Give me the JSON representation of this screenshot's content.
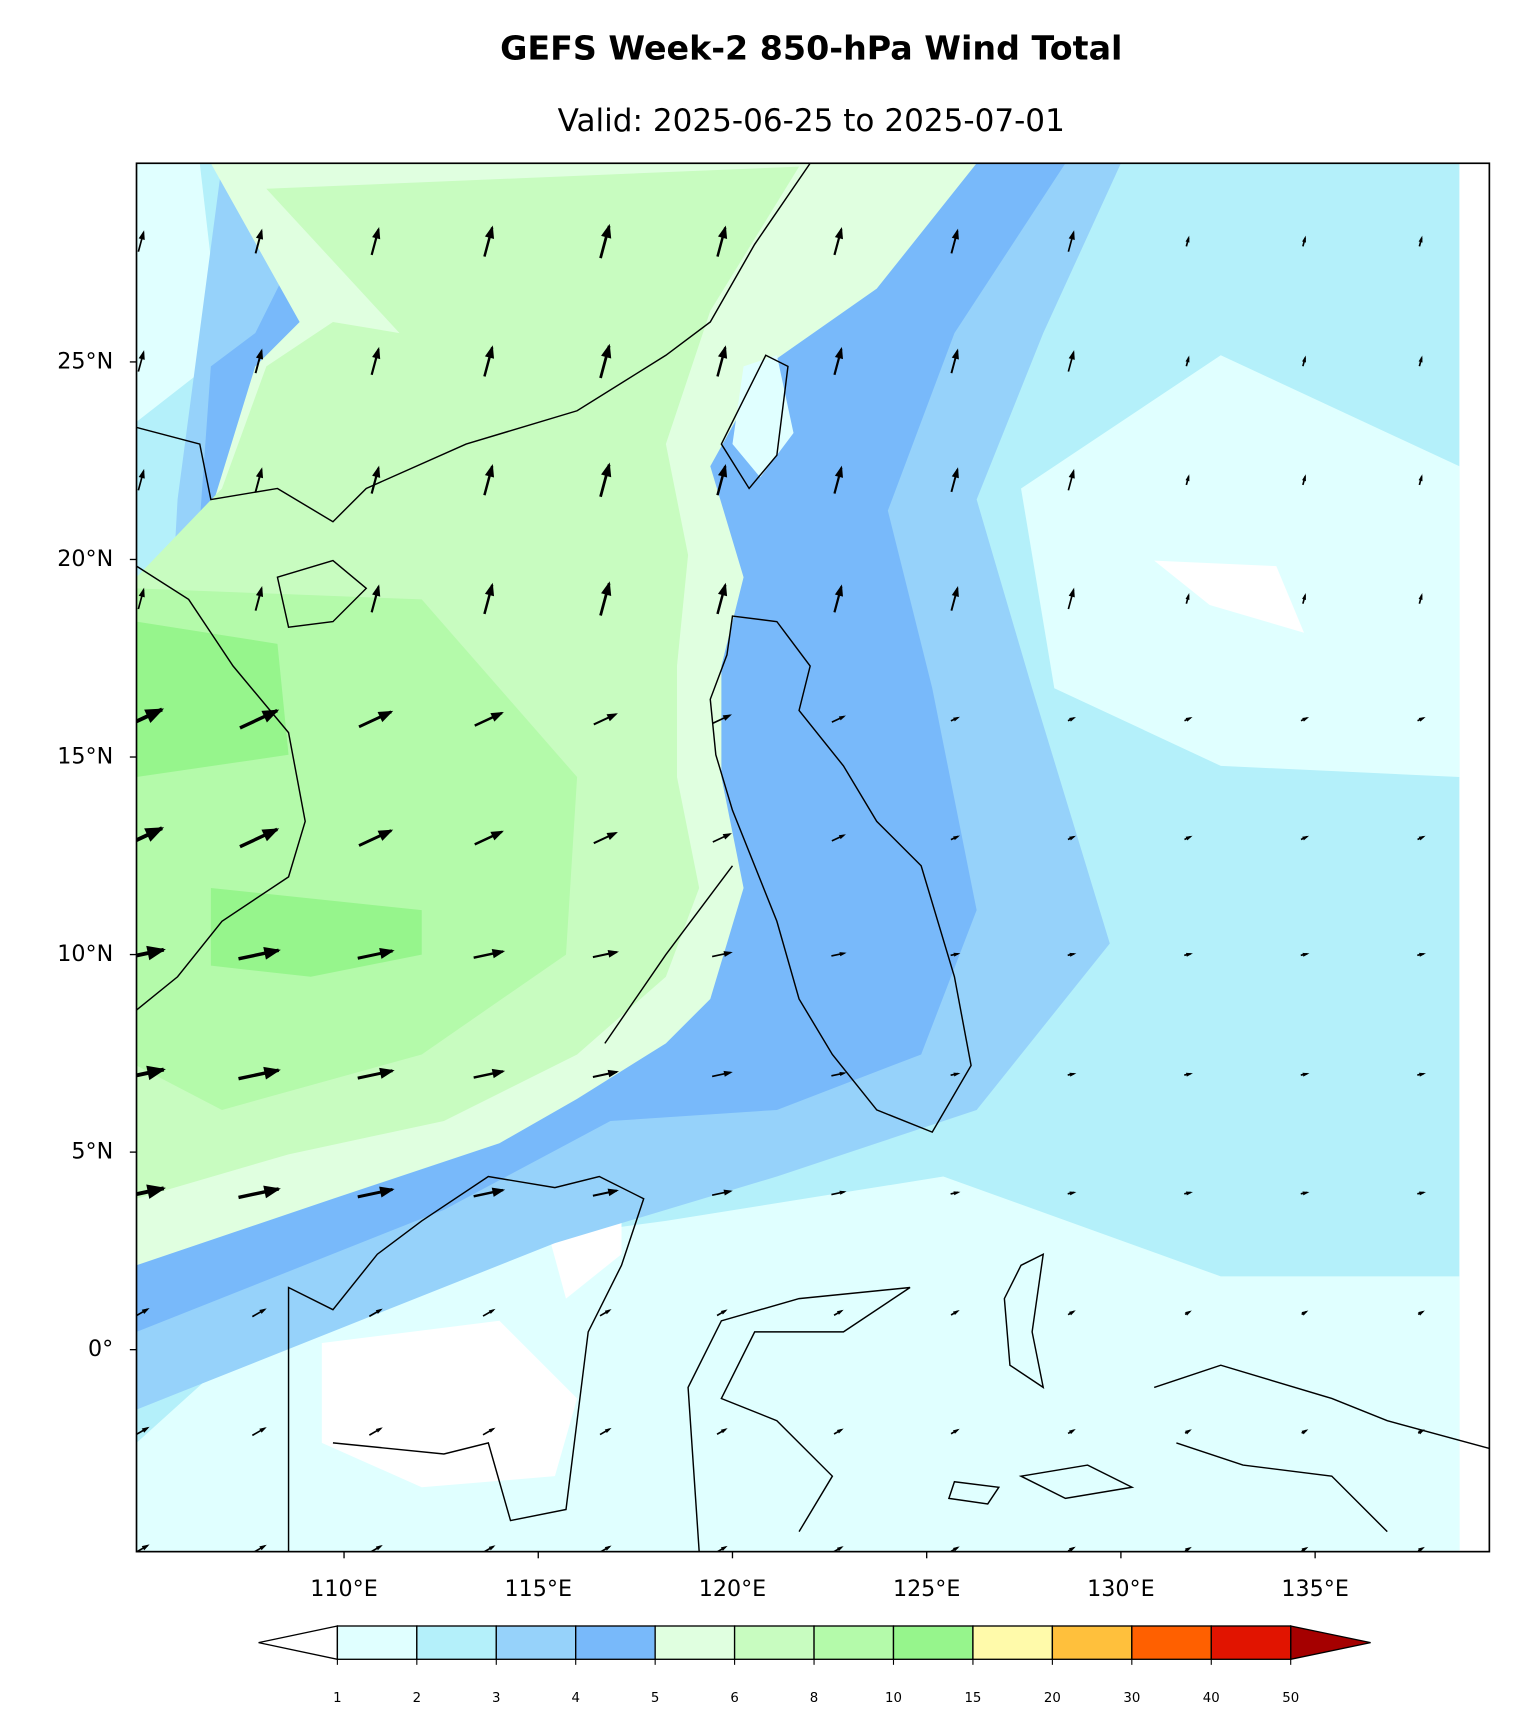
{
  "title": "GEFS Week-2 850-hPa Wind Total",
  "subtitle": "Valid: 2025-06-25 to 2025-07-01",
  "lat_ticks": [
    {
      "value": 25,
      "label": "25°N"
    },
    {
      "value": 20,
      "label": "20°N"
    },
    {
      "value": 15,
      "label": "15°N"
    },
    {
      "value": 10,
      "label": "10°N"
    },
    {
      "value": 5,
      "label": "5°N"
    },
    {
      "value": 0,
      "label": "0°"
    }
  ],
  "lon_ticks": [
    {
      "value": 110,
      "label": "110°E"
    },
    {
      "value": 115,
      "label": "115°E"
    },
    {
      "value": 120,
      "label": "120°E"
    },
    {
      "value": 125,
      "label": "125°E"
    },
    {
      "value": 130,
      "label": "130°E"
    },
    {
      "value": 135,
      "label": "135°E"
    }
  ],
  "colorbar": {
    "levels": [
      1,
      2,
      3,
      4,
      5,
      6,
      8,
      10,
      15,
      20,
      30,
      40,
      50
    ],
    "colors": [
      "#e0ffff",
      "#b4f0fa",
      "#96d2fa",
      "#78b9fa",
      "#e0ffe0",
      "#c8fcc0",
      "#b4faaa",
      "#96f58c",
      "#fffaaa",
      "#ffc03c",
      "#ff6000",
      "#e11400"
    ],
    "under_color": "#ffffff",
    "over_color": "#a50000"
  }
}
